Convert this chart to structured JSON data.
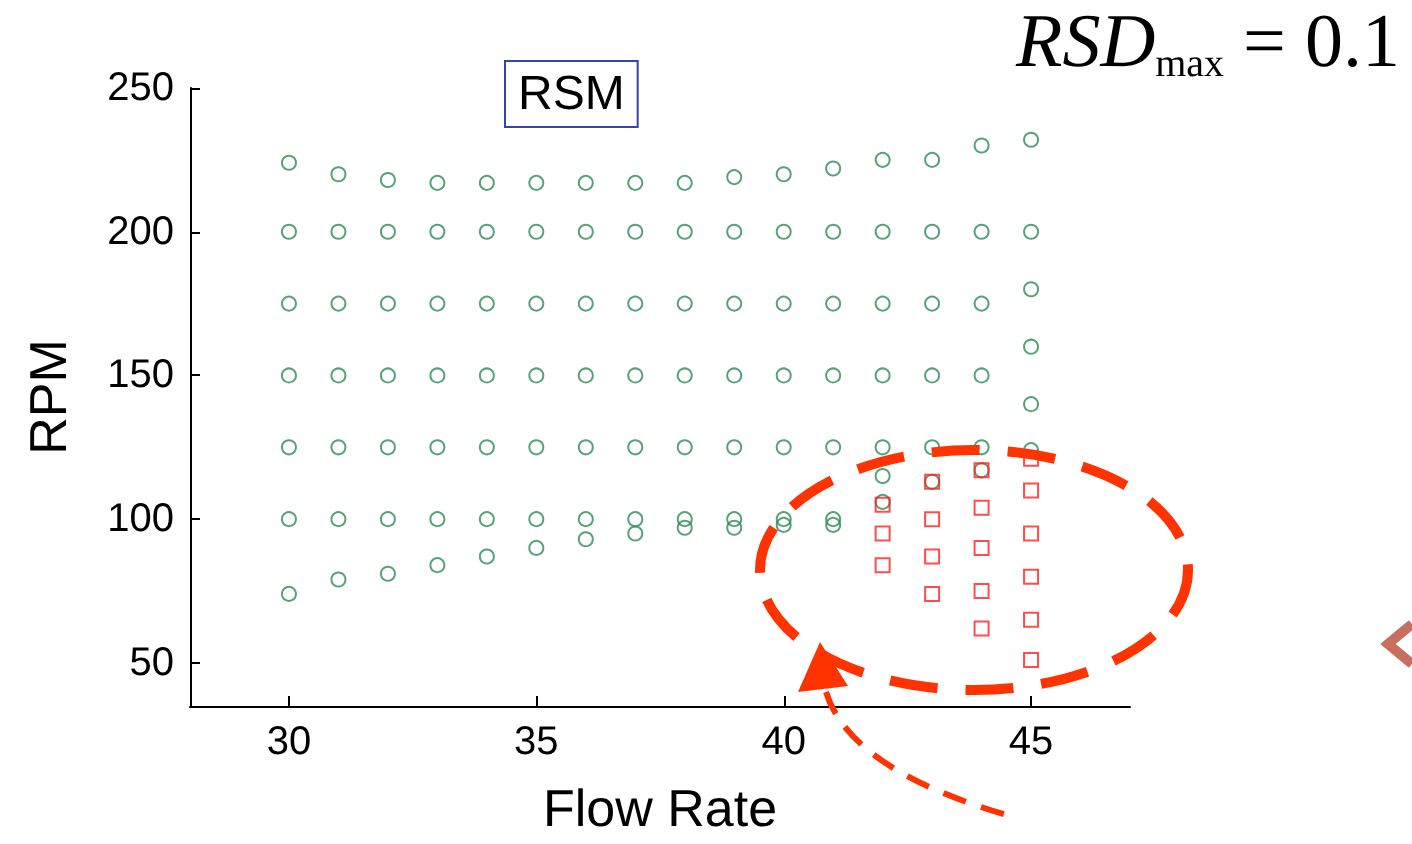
{
  "chart_data": {
    "type": "scatter",
    "title": "RSM",
    "xlabel": "Flow Rate",
    "ylabel": "RPM",
    "annotations": [
      "RSD$_{max}$ = 0.1"
    ],
    "xlim": [
      28,
      47
    ],
    "xticks": [
      30,
      35,
      40,
      45
    ],
    "ylim": [
      35,
      250
    ],
    "yticks": [
      50,
      100,
      150,
      200,
      250
    ],
    "grid": false,
    "series": [
      {
        "color": "#2e8b57",
        "marker": "circle",
        "x": [
          30,
          30,
          30,
          30,
          30,
          30,
          30,
          31,
          31,
          31,
          31,
          31,
          31,
          31,
          32,
          32,
          32,
          32,
          32,
          32,
          32,
          33,
          33,
          33,
          33,
          33,
          33,
          33,
          34,
          34,
          34,
          34,
          34,
          34,
          34,
          35,
          35,
          35,
          35,
          35,
          35,
          35,
          36,
          36,
          36,
          36,
          36,
          36,
          36,
          37,
          37,
          37,
          37,
          37,
          37,
          37,
          38,
          38,
          38,
          38,
          38,
          38,
          38,
          39,
          39,
          39,
          39,
          39,
          39,
          39,
          40,
          40,
          40,
          40,
          40,
          40,
          40,
          41,
          41,
          41,
          41,
          41,
          41,
          41,
          42,
          42,
          42,
          42,
          42,
          42,
          42,
          43,
          43,
          43,
          43,
          43,
          43,
          44,
          44,
          44,
          44,
          44,
          44,
          45,
          45,
          45,
          45,
          45,
          45
        ],
        "values": [
          74,
          100,
          125,
          150,
          175,
          200,
          224,
          79,
          100,
          125,
          150,
          175,
          200,
          220,
          81,
          100,
          125,
          150,
          175,
          200,
          218,
          84,
          100,
          125,
          150,
          175,
          200,
          217,
          87,
          100,
          125,
          150,
          175,
          200,
          217,
          90,
          100,
          125,
          150,
          175,
          200,
          217,
          93,
          100,
          125,
          150,
          175,
          200,
          217,
          95,
          100,
          125,
          150,
          175,
          200,
          217,
          97,
          100,
          125,
          150,
          175,
          200,
          217,
          97,
          100,
          125,
          150,
          175,
          200,
          219,
          98,
          100,
          125,
          150,
          175,
          200,
          220,
          98,
          100,
          125,
          150,
          175,
          200,
          222,
          106,
          115,
          125,
          150,
          175,
          200,
          225,
          113,
          125,
          150,
          175,
          200,
          225,
          117,
          125,
          150,
          175,
          200,
          230,
          124,
          140,
          160,
          180,
          200,
          232
        ]
      },
      {
        "color": "#ff2020",
        "marker": "square",
        "x": [
          42,
          42,
          42,
          43,
          43,
          43,
          43,
          44,
          44,
          44,
          44,
          44,
          45,
          45,
          45,
          45,
          45,
          45
        ],
        "values": [
          84,
          95,
          105,
          74,
          87,
          100,
          113,
          62,
          75,
          90,
          104,
          117,
          51,
          65,
          80,
          95,
          110,
          121
        ]
      }
    ]
  }
}
